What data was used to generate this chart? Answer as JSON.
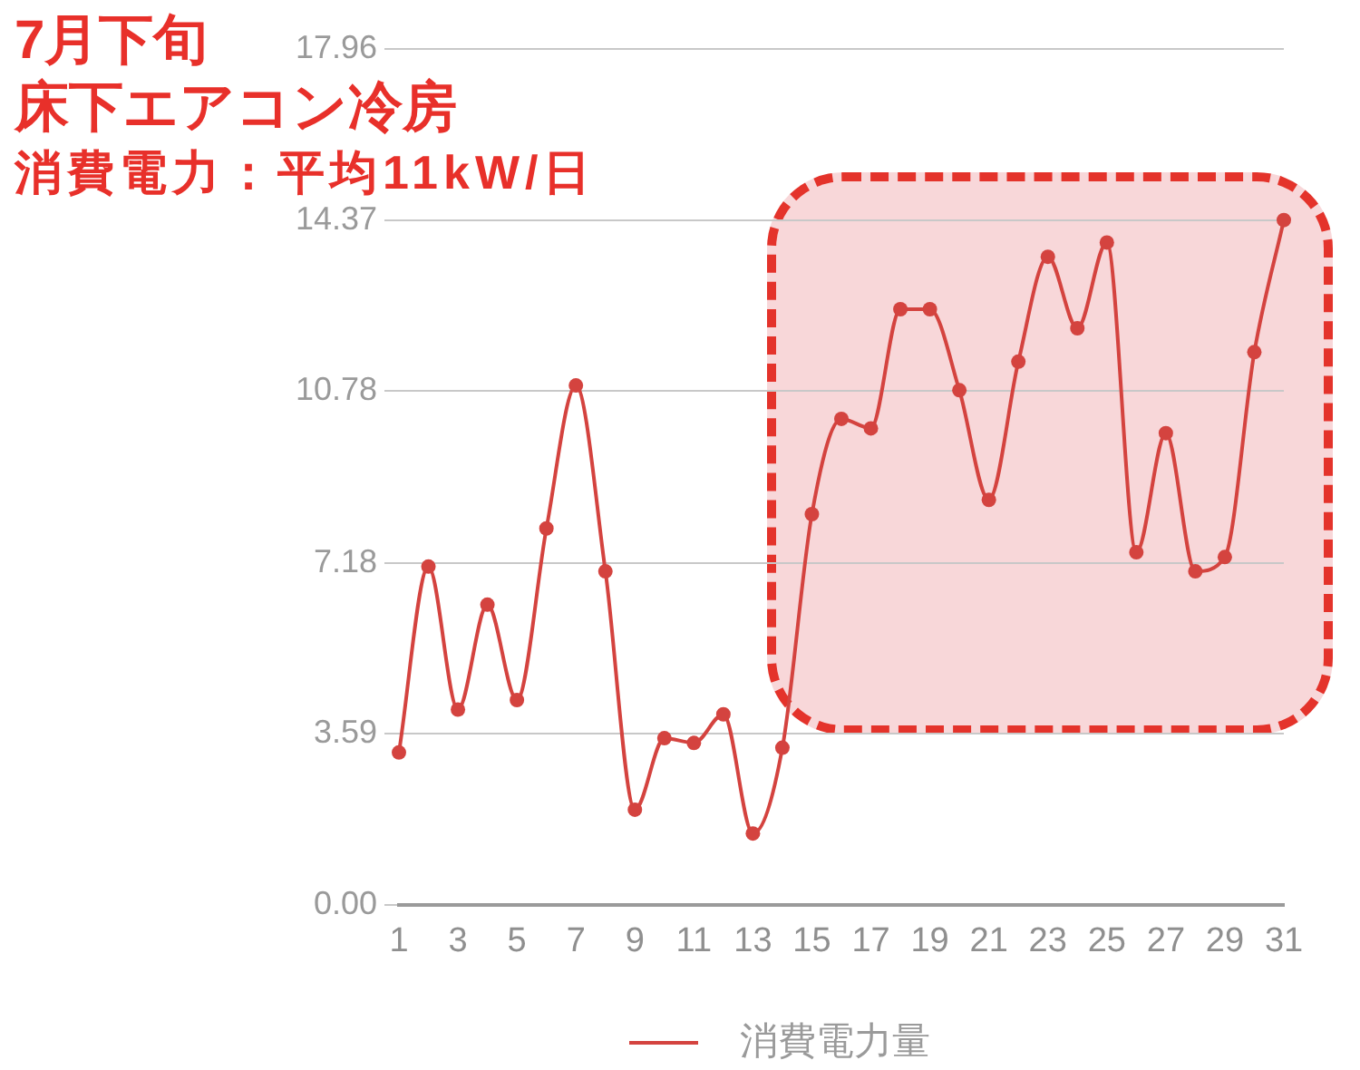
{
  "chart_data": {
    "type": "line",
    "title": "7月下旬",
    "subtitle": "床下エアコン冷房",
    "annotations": [
      "消費電力：平均11kW/日"
    ],
    "x": [
      1,
      2,
      3,
      4,
      5,
      6,
      7,
      8,
      9,
      10,
      11,
      12,
      13,
      14,
      15,
      16,
      17,
      18,
      19,
      20,
      21,
      22,
      23,
      24,
      25,
      26,
      27,
      28,
      29,
      30,
      31
    ],
    "series": [
      {
        "name": "消費電力量",
        "color": "#d4433f",
        "values": [
          3.2,
          7.1,
          4.1,
          6.3,
          4.3,
          7.9,
          10.9,
          7.0,
          2.0,
          3.5,
          3.4,
          4.0,
          1.5,
          3.3,
          8.2,
          10.2,
          10.0,
          12.5,
          12.5,
          10.8,
          8.5,
          11.4,
          13.6,
          12.1,
          13.9,
          7.4,
          9.9,
          7.0,
          7.3,
          11.6,
          14.37
        ]
      }
    ],
    "xlim": [
      1,
      31
    ],
    "xticks": [
      1,
      3,
      5,
      7,
      9,
      11,
      13,
      15,
      17,
      19,
      21,
      23,
      25,
      27,
      29,
      31
    ],
    "ylim": [
      0,
      17.96
    ],
    "yticks": [
      {
        "value": 0,
        "label": "0.00"
      },
      3.59,
      7.18,
      10.78,
      14.37,
      17.96
    ],
    "grid": "y",
    "legend": "bottom",
    "marker": "circle"
  }
}
